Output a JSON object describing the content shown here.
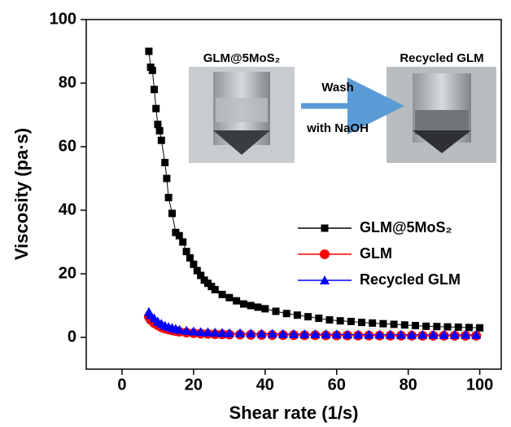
{
  "chart_data": {
    "type": "scatter-line",
    "x_label": "Shear rate (1/s)",
    "y_label": "Viscosity (pa·s)",
    "xlim": [
      -10,
      106
    ],
    "ylim": [
      -10,
      100
    ],
    "xticks": [
      0,
      20,
      40,
      60,
      80,
      100
    ],
    "yticks": [
      0,
      20,
      40,
      60,
      80,
      100
    ],
    "annotations": {
      "left_photo": "GLM@5MoS₂",
      "right_photo": "Recycled GLM",
      "arrow_top": "Wash",
      "arrow_bottom": "with NaOH"
    },
    "series": [
      {
        "name": "GLM@5MoS₂",
        "color": "#000000",
        "marker": "square",
        "x": [
          7.5,
          8,
          8.5,
          9,
          9.5,
          10,
          10.5,
          11,
          12,
          12.5,
          13,
          14,
          15,
          16,
          17,
          18,
          19,
          20,
          21,
          22,
          23,
          24,
          25,
          26,
          28,
          30,
          32,
          34,
          36,
          38,
          40,
          43,
          46,
          49,
          52,
          55,
          58,
          61,
          64,
          67,
          70,
          73,
          76,
          79,
          82,
          85,
          88,
          91,
          94,
          97,
          100
        ],
        "values": [
          90,
          85,
          84,
          78,
          72,
          67,
          65,
          62,
          55,
          50,
          44,
          39,
          33,
          32,
          30,
          27,
          25,
          23,
          21,
          19.5,
          18,
          17,
          16,
          15,
          13.5,
          12.5,
          11.5,
          10.5,
          10,
          9.5,
          9,
          8.2,
          7.5,
          7,
          6.5,
          6,
          5.5,
          5.2,
          5,
          4.7,
          4.5,
          4.3,
          4.1,
          3.9,
          3.7,
          3.5,
          3.4,
          3.3,
          3.2,
          3.1,
          3
        ]
      },
      {
        "name": "GLM",
        "color": "#ff0000",
        "marker": "circle",
        "x": [
          7.5,
          8,
          9,
          10,
          11,
          12,
          13,
          14,
          15,
          16,
          18,
          20,
          22,
          24,
          26,
          28,
          30,
          33,
          36,
          39,
          42,
          45,
          48,
          51,
          54,
          57,
          60,
          63,
          66,
          69,
          72,
          75,
          78,
          81,
          84,
          87,
          90,
          93,
          96,
          99
        ],
        "values": [
          6.5,
          5.5,
          4.5,
          3.8,
          3.2,
          2.8,
          2.5,
          2.2,
          2,
          1.8,
          1.5,
          1.3,
          1.2,
          1.1,
          1,
          0.95,
          0.9,
          0.85,
          0.8,
          0.78,
          0.75,
          0.72,
          0.7,
          0.68,
          0.66,
          0.64,
          0.62,
          0.6,
          0.58,
          0.57,
          0.56,
          0.55,
          0.54,
          0.53,
          0.52,
          0.51,
          0.5,
          0.5,
          0.5,
          0.5
        ]
      },
      {
        "name": "Recycled GLM",
        "color": "#0000ff",
        "marker": "triangle",
        "x": [
          7.5,
          8,
          9,
          10,
          11,
          12,
          13,
          14,
          15,
          16,
          18,
          20,
          22,
          24,
          26,
          28,
          30,
          33,
          36,
          39,
          42,
          45,
          48,
          51,
          54,
          57,
          60,
          63,
          66,
          69,
          72,
          75,
          78,
          81,
          84,
          87,
          90,
          93,
          96,
          99
        ],
        "values": [
          8,
          7,
          6,
          5,
          4.3,
          3.7,
          3.3,
          3,
          2.7,
          2.4,
          2.1,
          1.9,
          1.7,
          1.6,
          1.5,
          1.4,
          1.35,
          1.3,
          1.25,
          1.2,
          1.15,
          1.1,
          1.05,
          1,
          1,
          0.95,
          0.95,
          0.9,
          0.9,
          0.88,
          0.86,
          0.85,
          0.84,
          0.83,
          0.82,
          0.81,
          0.8,
          0.8,
          0.8,
          0.8
        ]
      }
    ]
  }
}
